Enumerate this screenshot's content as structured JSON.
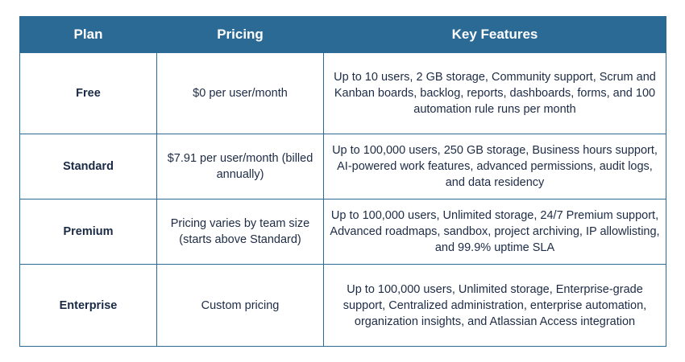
{
  "table": {
    "headers": {
      "plan": "Plan",
      "pricing": "Pricing",
      "features": "Key Features"
    },
    "rows": [
      {
        "plan": "Free",
        "pricing": "$0 per user/month",
        "features": "Up to 10 users, 2 GB storage, Community support, Scrum and Kanban boards, backlog, reports, dashboards, forms, and 100 automation rule runs per month"
      },
      {
        "plan": "Standard",
        "pricing": "$7.91 per user/month (billed annually)",
        "features": "Up to 100,000 users, 250 GB storage, Business hours support, AI-powered work features, advanced permissions, audit logs, and data residency"
      },
      {
        "plan": "Premium",
        "pricing": "Pricing varies by team size (starts above Standard)",
        "features": "Up to 100,000 users, Unlimited storage, 24/7 Premium support, Advanced roadmaps, sandbox, project archiving, IP allowlisting, and 99.9% uptime SLA"
      },
      {
        "plan": "Enterprise",
        "pricing": "Custom pricing",
        "features": "Up to 100,000 users, Unlimited storage, Enterprise-grade support, Centralized administration, enterprise automation, organization insights, and Atlassian Access integration"
      }
    ]
  },
  "colors": {
    "header_bg": "#2c6a96",
    "border": "#2c6a96",
    "header_text": "#ffffff",
    "body_text": "#1d2b45"
  }
}
